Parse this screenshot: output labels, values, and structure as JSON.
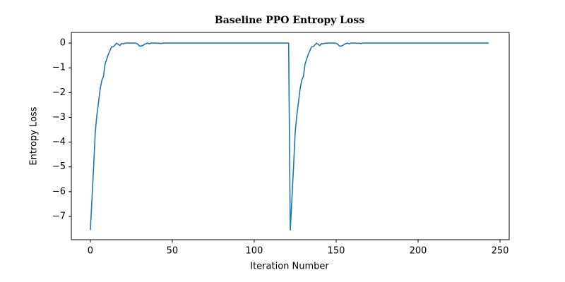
{
  "chart_data": {
    "type": "line",
    "title": "Baseline PPO Entropy Loss",
    "x_label": "Iteration Number",
    "y_label": "Entropy Loss",
    "xlim": [
      -11.6,
      255.6
    ],
    "ylim": [
      -7.94,
      0.43
    ],
    "xticks": [
      0,
      50,
      100,
      150,
      200,
      250
    ],
    "yticks": [
      0,
      {
        "value": -1,
        "label": "−1"
      },
      {
        "value": -2,
        "label": "−2"
      },
      {
        "value": -3,
        "label": "−3"
      },
      {
        "value": -4,
        "label": "−4"
      },
      {
        "value": -5,
        "label": "−5"
      },
      {
        "value": -6,
        "label": "−6"
      },
      {
        "value": -7,
        "label": "−7"
      }
    ],
    "grid": false,
    "x": [
      0,
      1,
      2,
      3,
      4,
      5,
      6,
      7,
      8,
      9,
      10,
      11,
      12,
      13,
      14,
      15,
      16,
      17,
      18,
      19,
      20,
      21,
      22,
      23,
      24,
      25,
      26,
      27,
      28,
      29,
      30,
      31,
      32,
      33,
      34,
      35,
      36,
      37,
      38,
      39,
      40,
      41,
      42,
      43,
      44,
      45,
      46,
      47,
      48,
      49,
      50,
      51,
      52,
      53,
      54,
      55,
      56,
      57,
      58,
      59,
      60,
      61,
      62,
      63,
      64,
      65,
      66,
      67,
      68,
      69,
      70,
      71,
      72,
      73,
      74,
      75,
      76,
      77,
      78,
      79,
      80,
      81,
      82,
      83,
      84,
      85,
      86,
      87,
      88,
      89,
      90,
      91,
      92,
      93,
      94,
      95,
      96,
      97,
      98,
      99,
      100,
      101,
      102,
      103,
      104,
      105,
      106,
      107,
      108,
      109,
      110,
      111,
      112,
      113,
      114,
      115,
      116,
      117,
      118,
      119,
      120,
      121,
      122,
      123,
      124,
      125,
      126,
      127,
      128,
      129,
      130,
      131,
      132,
      133,
      134,
      135,
      136,
      137,
      138,
      139,
      140,
      141,
      142,
      143,
      144,
      145,
      146,
      147,
      148,
      149,
      150,
      151,
      152,
      153,
      154,
      155,
      156,
      157,
      158,
      159,
      160,
      161,
      162,
      163,
      164,
      165,
      166,
      167,
      168,
      169,
      170,
      171,
      172,
      173,
      174,
      175,
      176,
      177,
      178,
      179,
      180,
      181,
      182,
      183,
      184,
      185,
      186,
      187,
      188,
      189,
      190,
      191,
      192,
      193,
      194,
      195,
      196,
      197,
      198,
      199,
      200,
      201,
      202,
      203,
      204,
      205,
      206,
      207,
      208,
      209,
      210,
      211,
      212,
      213,
      214,
      215,
      216,
      217,
      218,
      219,
      220,
      221,
      222,
      223,
      224,
      225,
      226,
      227,
      228,
      229,
      230,
      231,
      232,
      233,
      234,
      235,
      236,
      237,
      238,
      239,
      240,
      241,
      242,
      243
    ],
    "series": [
      {
        "color": "#1f77b4",
        "values": [
          -7.55,
          -6.3,
          -5.0,
          -3.6,
          -2.9,
          -2.4,
          -1.85,
          -1.5,
          -1.35,
          -0.85,
          -0.65,
          -0.45,
          -0.3,
          -0.15,
          -0.15,
          -0.08,
          0,
          -0.05,
          -0.1,
          -0.02,
          -0.03,
          -0.01,
          0,
          0,
          0,
          0,
          0,
          0,
          -0.01,
          -0.05,
          -0.12,
          -0.12,
          -0.1,
          -0.05,
          -0.02,
          0,
          -0.03,
          0,
          0,
          0,
          0,
          -0.01,
          0,
          -0.02,
          0,
          0,
          0,
          0,
          0,
          0,
          0,
          0,
          0,
          0,
          0,
          0,
          0,
          0,
          0,
          0,
          0,
          0,
          0,
          0,
          0,
          0,
          0,
          0,
          0,
          0,
          0,
          0,
          0,
          0,
          0,
          0,
          0,
          0,
          0,
          0,
          0,
          0,
          0,
          0,
          0,
          0,
          0,
          0,
          0,
          0,
          0,
          0,
          0,
          0,
          0,
          0,
          0,
          0,
          0,
          0,
          0,
          0,
          0,
          0,
          0,
          0,
          0,
          0,
          0,
          0,
          0,
          0,
          0,
          0,
          0,
          0,
          0,
          0,
          0,
          0,
          0,
          0,
          -7.55,
          -6.3,
          -5.0,
          -3.6,
          -2.9,
          -2.4,
          -1.85,
          -1.5,
          -1.35,
          -0.85,
          -0.65,
          -0.45,
          -0.3,
          -0.15,
          -0.15,
          -0.08,
          0,
          -0.05,
          -0.1,
          -0.02,
          -0.03,
          -0.01,
          0,
          0,
          0,
          0,
          0,
          0,
          -0.01,
          -0.05,
          -0.12,
          -0.12,
          -0.1,
          -0.05,
          -0.02,
          0,
          -0.03,
          0,
          0,
          0,
          0,
          -0.01,
          0,
          -0.02,
          0,
          0,
          0,
          0,
          0,
          0,
          0,
          0,
          0,
          0,
          0,
          0,
          0,
          0,
          0,
          0,
          0,
          0,
          0,
          0,
          0,
          0,
          0,
          0,
          0,
          0,
          0,
          0,
          0,
          0,
          0,
          0,
          0,
          0,
          0,
          0,
          0,
          0,
          0,
          0,
          0,
          0,
          0,
          0,
          0,
          0,
          0,
          0,
          0,
          0,
          0,
          0,
          0,
          0,
          0,
          0,
          0,
          0,
          0,
          0,
          0,
          0,
          0,
          0,
          0,
          0,
          0,
          0,
          0,
          0,
          0,
          0,
          0,
          0,
          0,
          0,
          0,
          0
        ]
      }
    ]
  }
}
